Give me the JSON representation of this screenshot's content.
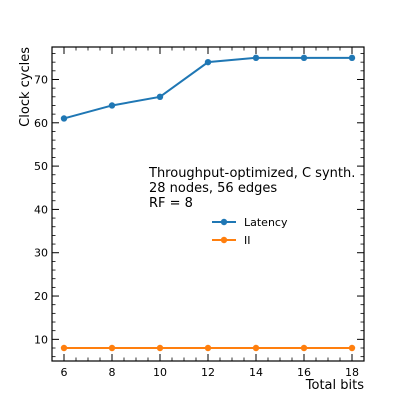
{
  "chart_data": {
    "type": "line",
    "xlabel": "Total bits",
    "ylabel": "Clock cycles",
    "xlim": [
      5.5,
      18.5
    ],
    "ylim": [
      5,
      77.5
    ],
    "xticks": [
      6,
      8,
      10,
      12,
      14,
      16,
      18
    ],
    "yticks": [
      10,
      20,
      30,
      40,
      50,
      60,
      70
    ],
    "x": [
      6,
      8,
      10,
      12,
      14,
      16,
      18
    ],
    "series": [
      {
        "name": "Latency",
        "color": "#1f77b4",
        "values": [
          61,
          64,
          66,
          74,
          75,
          75,
          75
        ]
      },
      {
        "name": "II",
        "color": "#ff7f0e",
        "values": [
          8,
          8,
          8,
          8,
          8,
          8,
          8
        ]
      }
    ],
    "annotation": [
      "Throughput-optimized, C synth.",
      "28 nodes, 56 edges",
      "RF = 8"
    ],
    "legend": "center-right",
    "grid": false
  }
}
